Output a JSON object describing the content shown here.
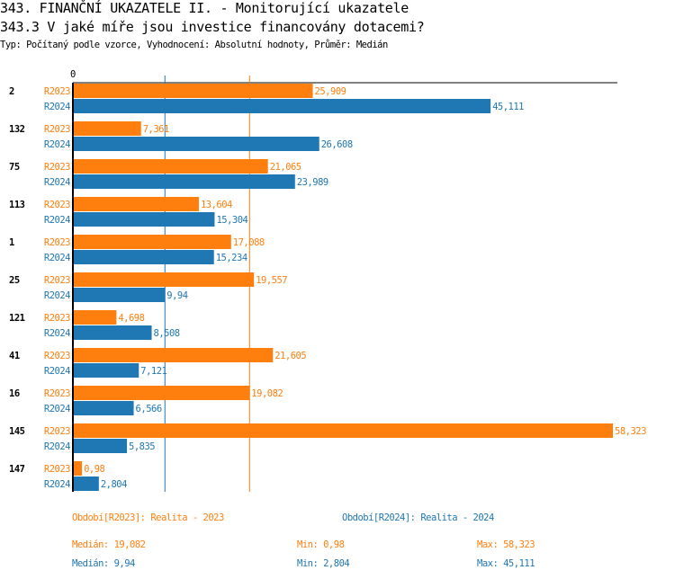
{
  "header": {
    "title": "343. FINANČNÍ UKAZATELE II. - Monitorující ukazatele",
    "question": "343.3 V jaké míře jsou investice financovány dotacemi?",
    "subtitle": "Typ: Počítaný podle vzorce, Vyhodnocení: Absolutní hodnoty, Průměr: Medián"
  },
  "chart_data": {
    "type": "bar",
    "orientation": "horizontal",
    "zero_label": "0",
    "xlim": [
      0,
      58.323
    ],
    "categories": [
      "2",
      "132",
      "75",
      "113",
      "1",
      "25",
      "121",
      "41",
      "16",
      "145",
      "147"
    ],
    "series": [
      {
        "name": "R2023",
        "color": "#ff7f0e",
        "values": [
          25.909,
          7.361,
          21.065,
          13.604,
          17.088,
          19.557,
          4.698,
          21.605,
          19.082,
          58.323,
          0.98
        ],
        "labels": [
          "25,909",
          "7,361",
          "21,065",
          "13,604",
          "17,088",
          "19,557",
          "4,698",
          "21,605",
          "19,082",
          "58,323",
          "0,98"
        ],
        "median": 19.082
      },
      {
        "name": "R2024",
        "color": "#1f77b4",
        "values": [
          45.111,
          26.608,
          23.989,
          15.304,
          15.234,
          9.94,
          8.508,
          7.121,
          6.566,
          5.835,
          2.804
        ],
        "labels": [
          "45,111",
          "26,608",
          "23,989",
          "15,304",
          "15,234",
          "9,94",
          "8,508",
          "7,121",
          "6,566",
          "5,835",
          "2,804"
        ],
        "median": 9.94
      }
    ]
  },
  "legend": {
    "r2023": "Období[R2023]: Realita - 2023",
    "r2024": "Období[R2024]: Realita - 2024"
  },
  "stats": {
    "r2023": {
      "median": "Medián: 19,082",
      "min": "Min: 0,98",
      "max": "Max: 58,323"
    },
    "r2024": {
      "median": "Medián: 9,94",
      "min": "Min: 2,804",
      "max": "Max: 45,111"
    }
  }
}
